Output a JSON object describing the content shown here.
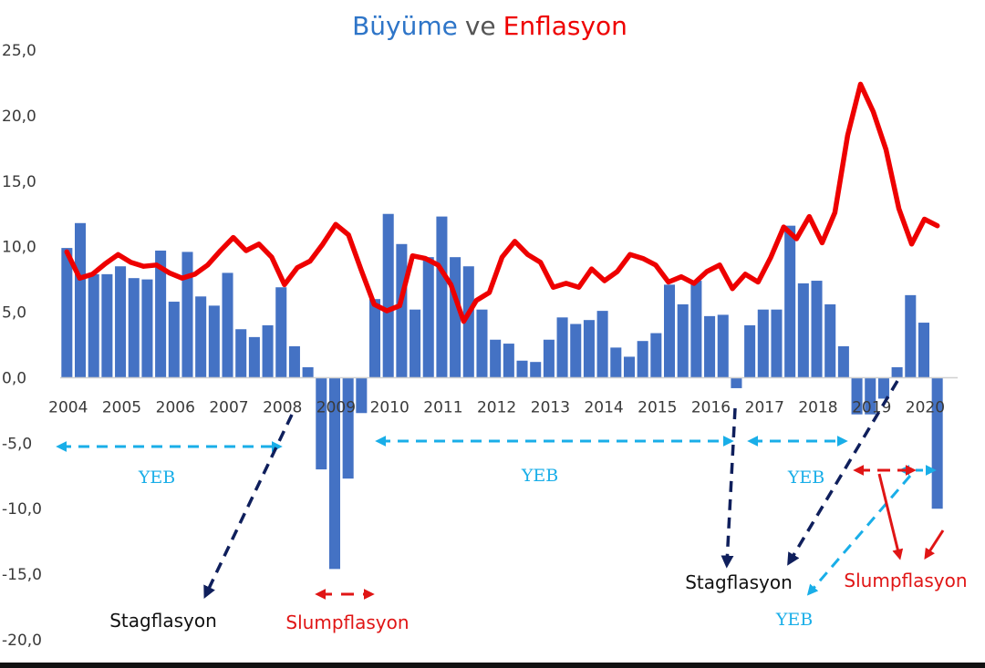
{
  "chart_data": {
    "type": "bar",
    "title_parts": {
      "growth": "Büyüme",
      "joiner": "ve",
      "inflation": "Enflasyon"
    },
    "colors": {
      "growth": "#4472c4",
      "inflation": "#ee0000",
      "yeb": "#19aee8",
      "stag": "#0f1f5c",
      "slump": "#e01515",
      "title_joiner": "#555555"
    },
    "ylim": [
      -20,
      25
    ],
    "yticks": [
      "25,0",
      "20,0",
      "15,0",
      "10,0",
      "5,0",
      "0,0",
      "-5,0",
      "-10,0",
      "-15,0",
      "-20,0"
    ],
    "ytick_values": [
      25,
      20,
      15,
      10,
      5,
      0,
      -5,
      -10,
      -15,
      -20
    ],
    "years": [
      "2004",
      "2005",
      "2006",
      "2007",
      "2008",
      "2009",
      "2010",
      "2011",
      "2012",
      "2013",
      "2014",
      "2015",
      "2016",
      "2017",
      "2018",
      "2019",
      "2020"
    ],
    "growth_quarterly": [
      9.9,
      11.8,
      7.9,
      7.9,
      8.5,
      7.6,
      7.5,
      9.7,
      5.8,
      9.6,
      6.2,
      5.5,
      8.0,
      3.7,
      3.1,
      4.0,
      6.9,
      2.4,
      0.8,
      -7.0,
      -14.6,
      -7.7,
      -2.7,
      6.0,
      12.5,
      10.2,
      5.2,
      9.2,
      12.3,
      9.2,
      8.5,
      5.2,
      2.9,
      2.6,
      1.3,
      1.2,
      2.9,
      4.6,
      4.1,
      4.4,
      5.1,
      2.3,
      1.6,
      2.8,
      3.4,
      7.1,
      5.6,
      7.4,
      4.7,
      4.8,
      -0.8,
      4.0,
      5.2,
      5.2,
      11.6,
      7.2,
      7.4,
      5.6,
      2.4,
      -2.8,
      -2.8,
      -1.6,
      0.8,
      6.3,
      4.2,
      -10.0
    ],
    "inflation_series": [
      9.6,
      7.6,
      7.9,
      8.7,
      9.4,
      8.8,
      8.5,
      8.6,
      8.0,
      7.6,
      7.9,
      8.6,
      9.7,
      10.7,
      9.7,
      10.2,
      9.2,
      7.1,
      8.4,
      8.9,
      10.2,
      11.7,
      10.9,
      8.2,
      5.6,
      5.1,
      5.5,
      9.3,
      9.1,
      8.6,
      7.1,
      4.3,
      5.9,
      6.5,
      9.2,
      10.4,
      9.4,
      8.8,
      6.9,
      7.2,
      6.9,
      8.3,
      7.4,
      8.1,
      9.4,
      9.1,
      8.6,
      7.3,
      7.7,
      7.2,
      8.1,
      8.6,
      6.8,
      7.9,
      7.3,
      9.2,
      11.5,
      10.6,
      12.3,
      10.3,
      12.6,
      18.5,
      22.4,
      20.3,
      17.4,
      12.9,
      10.2,
      12.1,
      11.6
    ],
    "annotations": {
      "yeb1": "YEB",
      "yeb2": "YEB",
      "yeb3": "YEB",
      "yeb4": "YEB",
      "stag1": "Stagflasyon",
      "stag2": "Stagflasyon",
      "slump1": "Slumpflasyon",
      "slump2": "Slumpflasyon"
    }
  }
}
